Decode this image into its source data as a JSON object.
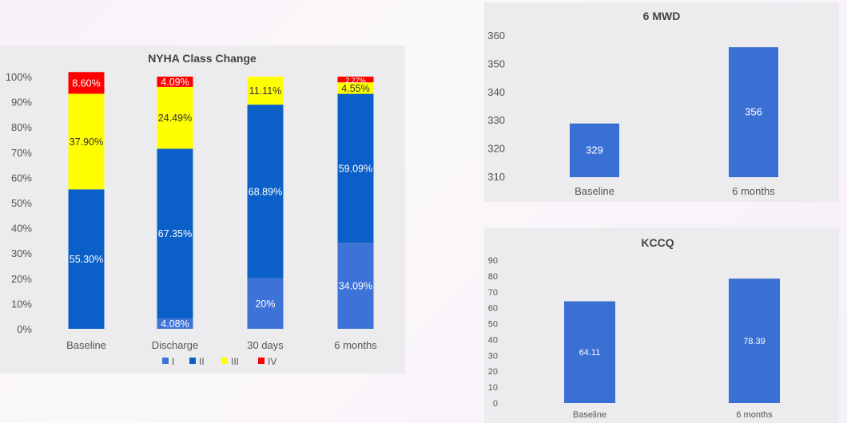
{
  "chart_data": [
    {
      "type": "bar",
      "stacked": true,
      "title": "NYHA Class Change",
      "categories": [
        "Baseline",
        "Discharge",
        "30 days",
        "6 months"
      ],
      "yticks": [
        "0%",
        "10%",
        "20%",
        "30%",
        "40%",
        "50%",
        "60%",
        "70%",
        "80%",
        "90%",
        "100%"
      ],
      "ylim": [
        0,
        100
      ],
      "series": [
        {
          "name": "I",
          "color": "#3d72d6",
          "values": [
            0,
            4.08,
            20,
            34.09
          ],
          "labels": [
            "",
            "4.08%",
            "20%",
            "34.09%"
          ]
        },
        {
          "name": "II",
          "color": "#0a60c8",
          "values": [
            55.3,
            67.35,
            68.89,
            59.09
          ],
          "labels": [
            "55.30%",
            "67.35%",
            "68.89%",
            "59.09%"
          ]
        },
        {
          "name": "III",
          "color": "#ffff00",
          "values": [
            37.9,
            24.49,
            11.11,
            4.55
          ],
          "labels": [
            "37.90%",
            "24.49%",
            "11.11%",
            "4.55%"
          ]
        },
        {
          "name": "IV",
          "color": "#ff0000",
          "values": [
            8.6,
            4.09,
            0,
            2.27
          ],
          "labels": [
            "8.60%",
            "4.09%",
            "",
            "2.27%"
          ]
        }
      ],
      "legend": "bottom"
    },
    {
      "type": "bar",
      "title": "6 MWD",
      "categories": [
        "Baseline",
        "6 months"
      ],
      "values": [
        329,
        356
      ],
      "labels": [
        "329",
        "356"
      ],
      "ylim": [
        310,
        360
      ],
      "yticks": [
        "310",
        "320",
        "330",
        "340",
        "350",
        "360"
      ],
      "color": "#3a6fd3"
    },
    {
      "type": "bar",
      "title": "KCCQ",
      "categories": [
        "Baseline",
        "6 months"
      ],
      "values": [
        64.11,
        78.39
      ],
      "labels": [
        "64.11",
        "78.39"
      ],
      "ylim": [
        0,
        90
      ],
      "yticks": [
        "0",
        "10",
        "20",
        "30",
        "40",
        "50",
        "60",
        "70",
        "80",
        "90"
      ],
      "color": "#3a6fd3"
    }
  ]
}
